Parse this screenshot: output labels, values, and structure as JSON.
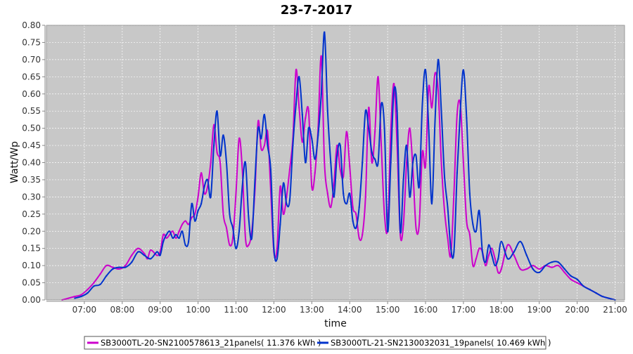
{
  "chart_data": {
    "type": "line",
    "title": "23-7-2017",
    "xlabel": "time",
    "ylabel": "Watt/Wp",
    "x_ticks": [
      "07:00",
      "08:00",
      "09:00",
      "10:00",
      "11:00",
      "12:00",
      "13:00",
      "14:00",
      "15:00",
      "16:00",
      "17:00",
      "18:00",
      "19:00",
      "20:00",
      "21:00"
    ],
    "y_ticks": [
      "0.00",
      "0.05",
      "0.10",
      "0.15",
      "0.20",
      "0.25",
      "0.30",
      "0.35",
      "0.40",
      "0.45",
      "0.50",
      "0.55",
      "0.60",
      "0.65",
      "0.70",
      "0.75",
      "0.80"
    ],
    "xlim": [
      "06:00",
      "21:15"
    ],
    "ylim": [
      0,
      0.8
    ],
    "grid": true,
    "legend_position": "bottom",
    "colors": {
      "plot_bg": "#c8c8c8",
      "grid": "#ffffff"
    },
    "series": [
      {
        "name": "SB3000TL-20-SN2100578613_21panels( 11.376 kWh )",
        "color": "#cc00cc",
        "points": [
          [
            "06:25",
            0.0
          ],
          [
            "06:35",
            0.005
          ],
          [
            "06:45",
            0.01
          ],
          [
            "06:55",
            0.015
          ],
          [
            "07:05",
            0.03
          ],
          [
            "07:15",
            0.05
          ],
          [
            "07:25",
            0.075
          ],
          [
            "07:35",
            0.1
          ],
          [
            "07:45",
            0.095
          ],
          [
            "07:55",
            0.09
          ],
          [
            "08:05",
            0.1
          ],
          [
            "08:15",
            0.13
          ],
          [
            "08:25",
            0.15
          ],
          [
            "08:35",
            0.135
          ],
          [
            "08:40",
            0.12
          ],
          [
            "08:45",
            0.145
          ],
          [
            "08:55",
            0.13
          ],
          [
            "09:00",
            0.14
          ],
          [
            "09:05",
            0.19
          ],
          [
            "09:10",
            0.18
          ],
          [
            "09:15",
            0.19
          ],
          [
            "09:20",
            0.2
          ],
          [
            "09:25",
            0.18
          ],
          [
            "09:30",
            0.2
          ],
          [
            "09:35",
            0.22
          ],
          [
            "09:40",
            0.23
          ],
          [
            "09:45",
            0.22
          ],
          [
            "09:50",
            0.24
          ],
          [
            "09:55",
            0.25
          ],
          [
            "10:00",
            0.3
          ],
          [
            "10:05",
            0.37
          ],
          [
            "10:10",
            0.31
          ],
          [
            "10:15",
            0.33
          ],
          [
            "10:20",
            0.4
          ],
          [
            "10:25",
            0.51
          ],
          [
            "10:30",
            0.43
          ],
          [
            "10:35",
            0.4
          ],
          [
            "10:40",
            0.25
          ],
          [
            "10:45",
            0.21
          ],
          [
            "10:50",
            0.16
          ],
          [
            "10:55",
            0.18
          ],
          [
            "11:00",
            0.31
          ],
          [
            "11:05",
            0.47
          ],
          [
            "11:10",
            0.38
          ],
          [
            "11:15",
            0.18
          ],
          [
            "11:20",
            0.16
          ],
          [
            "11:25",
            0.2
          ],
          [
            "11:30",
            0.32
          ],
          [
            "11:35",
            0.52
          ],
          [
            "11:40",
            0.44
          ],
          [
            "11:45",
            0.45
          ],
          [
            "11:50",
            0.49
          ],
          [
            "11:55",
            0.32
          ],
          [
            "12:00",
            0.14
          ],
          [
            "12:05",
            0.15
          ],
          [
            "12:10",
            0.33
          ],
          [
            "12:15",
            0.25
          ],
          [
            "12:20",
            0.3
          ],
          [
            "12:25",
            0.38
          ],
          [
            "12:30",
            0.47
          ],
          [
            "12:35",
            0.67
          ],
          [
            "12:40",
            0.56
          ],
          [
            "12:45",
            0.46
          ],
          [
            "12:50",
            0.53
          ],
          [
            "12:55",
            0.55
          ],
          [
            "13:00",
            0.33
          ],
          [
            "13:05",
            0.37
          ],
          [
            "13:10",
            0.5
          ],
          [
            "13:15",
            0.71
          ],
          [
            "13:20",
            0.4
          ],
          [
            "13:25",
            0.31
          ],
          [
            "13:30",
            0.27
          ],
          [
            "13:35",
            0.34
          ],
          [
            "13:40",
            0.45
          ],
          [
            "13:45",
            0.38
          ],
          [
            "13:50",
            0.36
          ],
          [
            "13:55",
            0.49
          ],
          [
            "14:00",
            0.39
          ],
          [
            "14:05",
            0.27
          ],
          [
            "14:10",
            0.25
          ],
          [
            "14:15",
            0.18
          ],
          [
            "14:20",
            0.19
          ],
          [
            "14:25",
            0.3
          ],
          [
            "14:30",
            0.56
          ],
          [
            "14:35",
            0.4
          ],
          [
            "14:40",
            0.49
          ],
          [
            "14:45",
            0.65
          ],
          [
            "14:50",
            0.45
          ],
          [
            "14:55",
            0.25
          ],
          [
            "15:00",
            0.21
          ],
          [
            "15:05",
            0.49
          ],
          [
            "15:10",
            0.63
          ],
          [
            "15:15",
            0.45
          ],
          [
            "15:20",
            0.19
          ],
          [
            "15:25",
            0.22
          ],
          [
            "15:30",
            0.4
          ],
          [
            "15:35",
            0.5
          ],
          [
            "15:40",
            0.38
          ],
          [
            "15:45",
            0.21
          ],
          [
            "15:50",
            0.22
          ],
          [
            "15:55",
            0.43
          ],
          [
            "16:00",
            0.39
          ],
          [
            "16:05",
            0.62
          ],
          [
            "16:10",
            0.56
          ],
          [
            "16:15",
            0.66
          ],
          [
            "16:20",
            0.61
          ],
          [
            "16:25",
            0.4
          ],
          [
            "16:30",
            0.26
          ],
          [
            "16:35",
            0.18
          ],
          [
            "16:40",
            0.13
          ],
          [
            "16:45",
            0.31
          ],
          [
            "16:50",
            0.54
          ],
          [
            "16:55",
            0.57
          ],
          [
            "17:00",
            0.4
          ],
          [
            "17:05",
            0.23
          ],
          [
            "17:10",
            0.19
          ],
          [
            "17:15",
            0.1
          ],
          [
            "17:20",
            0.12
          ],
          [
            "17:25",
            0.15
          ],
          [
            "17:30",
            0.14
          ],
          [
            "17:35",
            0.1
          ],
          [
            "17:40",
            0.13
          ],
          [
            "17:45",
            0.15
          ],
          [
            "17:50",
            0.12
          ],
          [
            "17:55",
            0.08
          ],
          [
            "18:00",
            0.09
          ],
          [
            "18:10",
            0.16
          ],
          [
            "18:20",
            0.13
          ],
          [
            "18:30",
            0.09
          ],
          [
            "18:40",
            0.09
          ],
          [
            "18:50",
            0.1
          ],
          [
            "19:00",
            0.09
          ],
          [
            "19:10",
            0.1
          ],
          [
            "19:20",
            0.095
          ],
          [
            "19:30",
            0.1
          ],
          [
            "19:40",
            0.08
          ],
          [
            "19:50",
            0.06
          ],
          [
            "20:00",
            0.05
          ],
          [
            "20:10",
            0.04
          ],
          [
            "20:20",
            0.03
          ],
          [
            "20:30",
            0.02
          ],
          [
            "20:40",
            0.01
          ],
          [
            "20:50",
            0.005
          ],
          [
            "21:00",
            0.0
          ]
        ]
      },
      {
        "name": "SB3000TL-21-SN2130032031_19panels( 10.469 kWh )",
        "color": "#0033cc",
        "points": [
          [
            "06:45",
            0.005
          ],
          [
            "06:55",
            0.01
          ],
          [
            "07:05",
            0.02
          ],
          [
            "07:15",
            0.04
          ],
          [
            "07:25",
            0.045
          ],
          [
            "07:35",
            0.07
          ],
          [
            "07:45",
            0.09
          ],
          [
            "07:55",
            0.095
          ],
          [
            "08:05",
            0.095
          ],
          [
            "08:15",
            0.11
          ],
          [
            "08:25",
            0.14
          ],
          [
            "08:35",
            0.13
          ],
          [
            "08:45",
            0.12
          ],
          [
            "08:55",
            0.14
          ],
          [
            "09:00",
            0.13
          ],
          [
            "09:05",
            0.17
          ],
          [
            "09:10",
            0.19
          ],
          [
            "09:15",
            0.2
          ],
          [
            "09:20",
            0.18
          ],
          [
            "09:25",
            0.19
          ],
          [
            "09:30",
            0.18
          ],
          [
            "09:35",
            0.2
          ],
          [
            "09:40",
            0.16
          ],
          [
            "09:45",
            0.17
          ],
          [
            "09:50",
            0.28
          ],
          [
            "09:55",
            0.23
          ],
          [
            "10:00",
            0.26
          ],
          [
            "10:05",
            0.28
          ],
          [
            "10:10",
            0.33
          ],
          [
            "10:15",
            0.35
          ],
          [
            "10:20",
            0.3
          ],
          [
            "10:25",
            0.45
          ],
          [
            "10:30",
            0.55
          ],
          [
            "10:35",
            0.42
          ],
          [
            "10:40",
            0.48
          ],
          [
            "10:45",
            0.4
          ],
          [
            "10:50",
            0.25
          ],
          [
            "10:55",
            0.21
          ],
          [
            "11:00",
            0.15
          ],
          [
            "11:05",
            0.2
          ],
          [
            "11:10",
            0.33
          ],
          [
            "11:15",
            0.4
          ],
          [
            "11:20",
            0.24
          ],
          [
            "11:25",
            0.18
          ],
          [
            "11:30",
            0.35
          ],
          [
            "11:35",
            0.5
          ],
          [
            "11:40",
            0.47
          ],
          [
            "11:45",
            0.54
          ],
          [
            "11:50",
            0.45
          ],
          [
            "11:55",
            0.38
          ],
          [
            "12:00",
            0.15
          ],
          [
            "12:05",
            0.12
          ],
          [
            "12:10",
            0.22
          ],
          [
            "12:15",
            0.34
          ],
          [
            "12:20",
            0.28
          ],
          [
            "12:25",
            0.29
          ],
          [
            "12:30",
            0.45
          ],
          [
            "12:35",
            0.57
          ],
          [
            "12:40",
            0.65
          ],
          [
            "12:45",
            0.54
          ],
          [
            "12:50",
            0.4
          ],
          [
            "12:55",
            0.5
          ],
          [
            "13:00",
            0.47
          ],
          [
            "13:05",
            0.41
          ],
          [
            "13:10",
            0.48
          ],
          [
            "13:15",
            0.6
          ],
          [
            "13:20",
            0.78
          ],
          [
            "13:25",
            0.55
          ],
          [
            "13:30",
            0.4
          ],
          [
            "13:35",
            0.3
          ],
          [
            "13:40",
            0.42
          ],
          [
            "13:45",
            0.45
          ],
          [
            "13:50",
            0.31
          ],
          [
            "13:55",
            0.28
          ],
          [
            "14:00",
            0.31
          ],
          [
            "14:05",
            0.23
          ],
          [
            "14:10",
            0.21
          ],
          [
            "14:15",
            0.27
          ],
          [
            "14:20",
            0.4
          ],
          [
            "14:25",
            0.55
          ],
          [
            "14:30",
            0.5
          ],
          [
            "14:35",
            0.43
          ],
          [
            "14:40",
            0.41
          ],
          [
            "14:45",
            0.4
          ],
          [
            "14:50",
            0.57
          ],
          [
            "14:55",
            0.5
          ],
          [
            "15:00",
            0.2
          ],
          [
            "15:05",
            0.4
          ],
          [
            "15:10",
            0.61
          ],
          [
            "15:15",
            0.55
          ],
          [
            "15:20",
            0.2
          ],
          [
            "15:25",
            0.35
          ],
          [
            "15:30",
            0.45
          ],
          [
            "15:35",
            0.3
          ],
          [
            "15:40",
            0.4
          ],
          [
            "15:45",
            0.42
          ],
          [
            "15:50",
            0.33
          ],
          [
            "15:55",
            0.57
          ],
          [
            "16:00",
            0.67
          ],
          [
            "16:05",
            0.5
          ],
          [
            "16:10",
            0.28
          ],
          [
            "16:15",
            0.52
          ],
          [
            "16:20",
            0.7
          ],
          [
            "16:25",
            0.55
          ],
          [
            "16:30",
            0.36
          ],
          [
            "16:35",
            0.27
          ],
          [
            "16:40",
            0.15
          ],
          [
            "16:45",
            0.14
          ],
          [
            "16:50",
            0.37
          ],
          [
            "16:55",
            0.55
          ],
          [
            "17:00",
            0.67
          ],
          [
            "17:05",
            0.53
          ],
          [
            "17:10",
            0.31
          ],
          [
            "17:15",
            0.22
          ],
          [
            "17:20",
            0.2
          ],
          [
            "17:25",
            0.26
          ],
          [
            "17:30",
            0.14
          ],
          [
            "17:35",
            0.11
          ],
          [
            "17:40",
            0.16
          ],
          [
            "17:45",
            0.13
          ],
          [
            "17:50",
            0.1
          ],
          [
            "17:55",
            0.12
          ],
          [
            "18:00",
            0.17
          ],
          [
            "18:10",
            0.12
          ],
          [
            "18:20",
            0.14
          ],
          [
            "18:30",
            0.17
          ],
          [
            "18:40",
            0.13
          ],
          [
            "18:50",
            0.09
          ],
          [
            "19:00",
            0.08
          ],
          [
            "19:10",
            0.1
          ],
          [
            "19:20",
            0.11
          ],
          [
            "19:30",
            0.11
          ],
          [
            "19:40",
            0.09
          ],
          [
            "19:50",
            0.07
          ],
          [
            "20:00",
            0.06
          ],
          [
            "20:10",
            0.04
          ],
          [
            "20:20",
            0.03
          ],
          [
            "20:30",
            0.02
          ],
          [
            "20:40",
            0.01
          ],
          [
            "20:50",
            0.005
          ],
          [
            "21:00",
            0.0
          ]
        ]
      }
    ]
  }
}
